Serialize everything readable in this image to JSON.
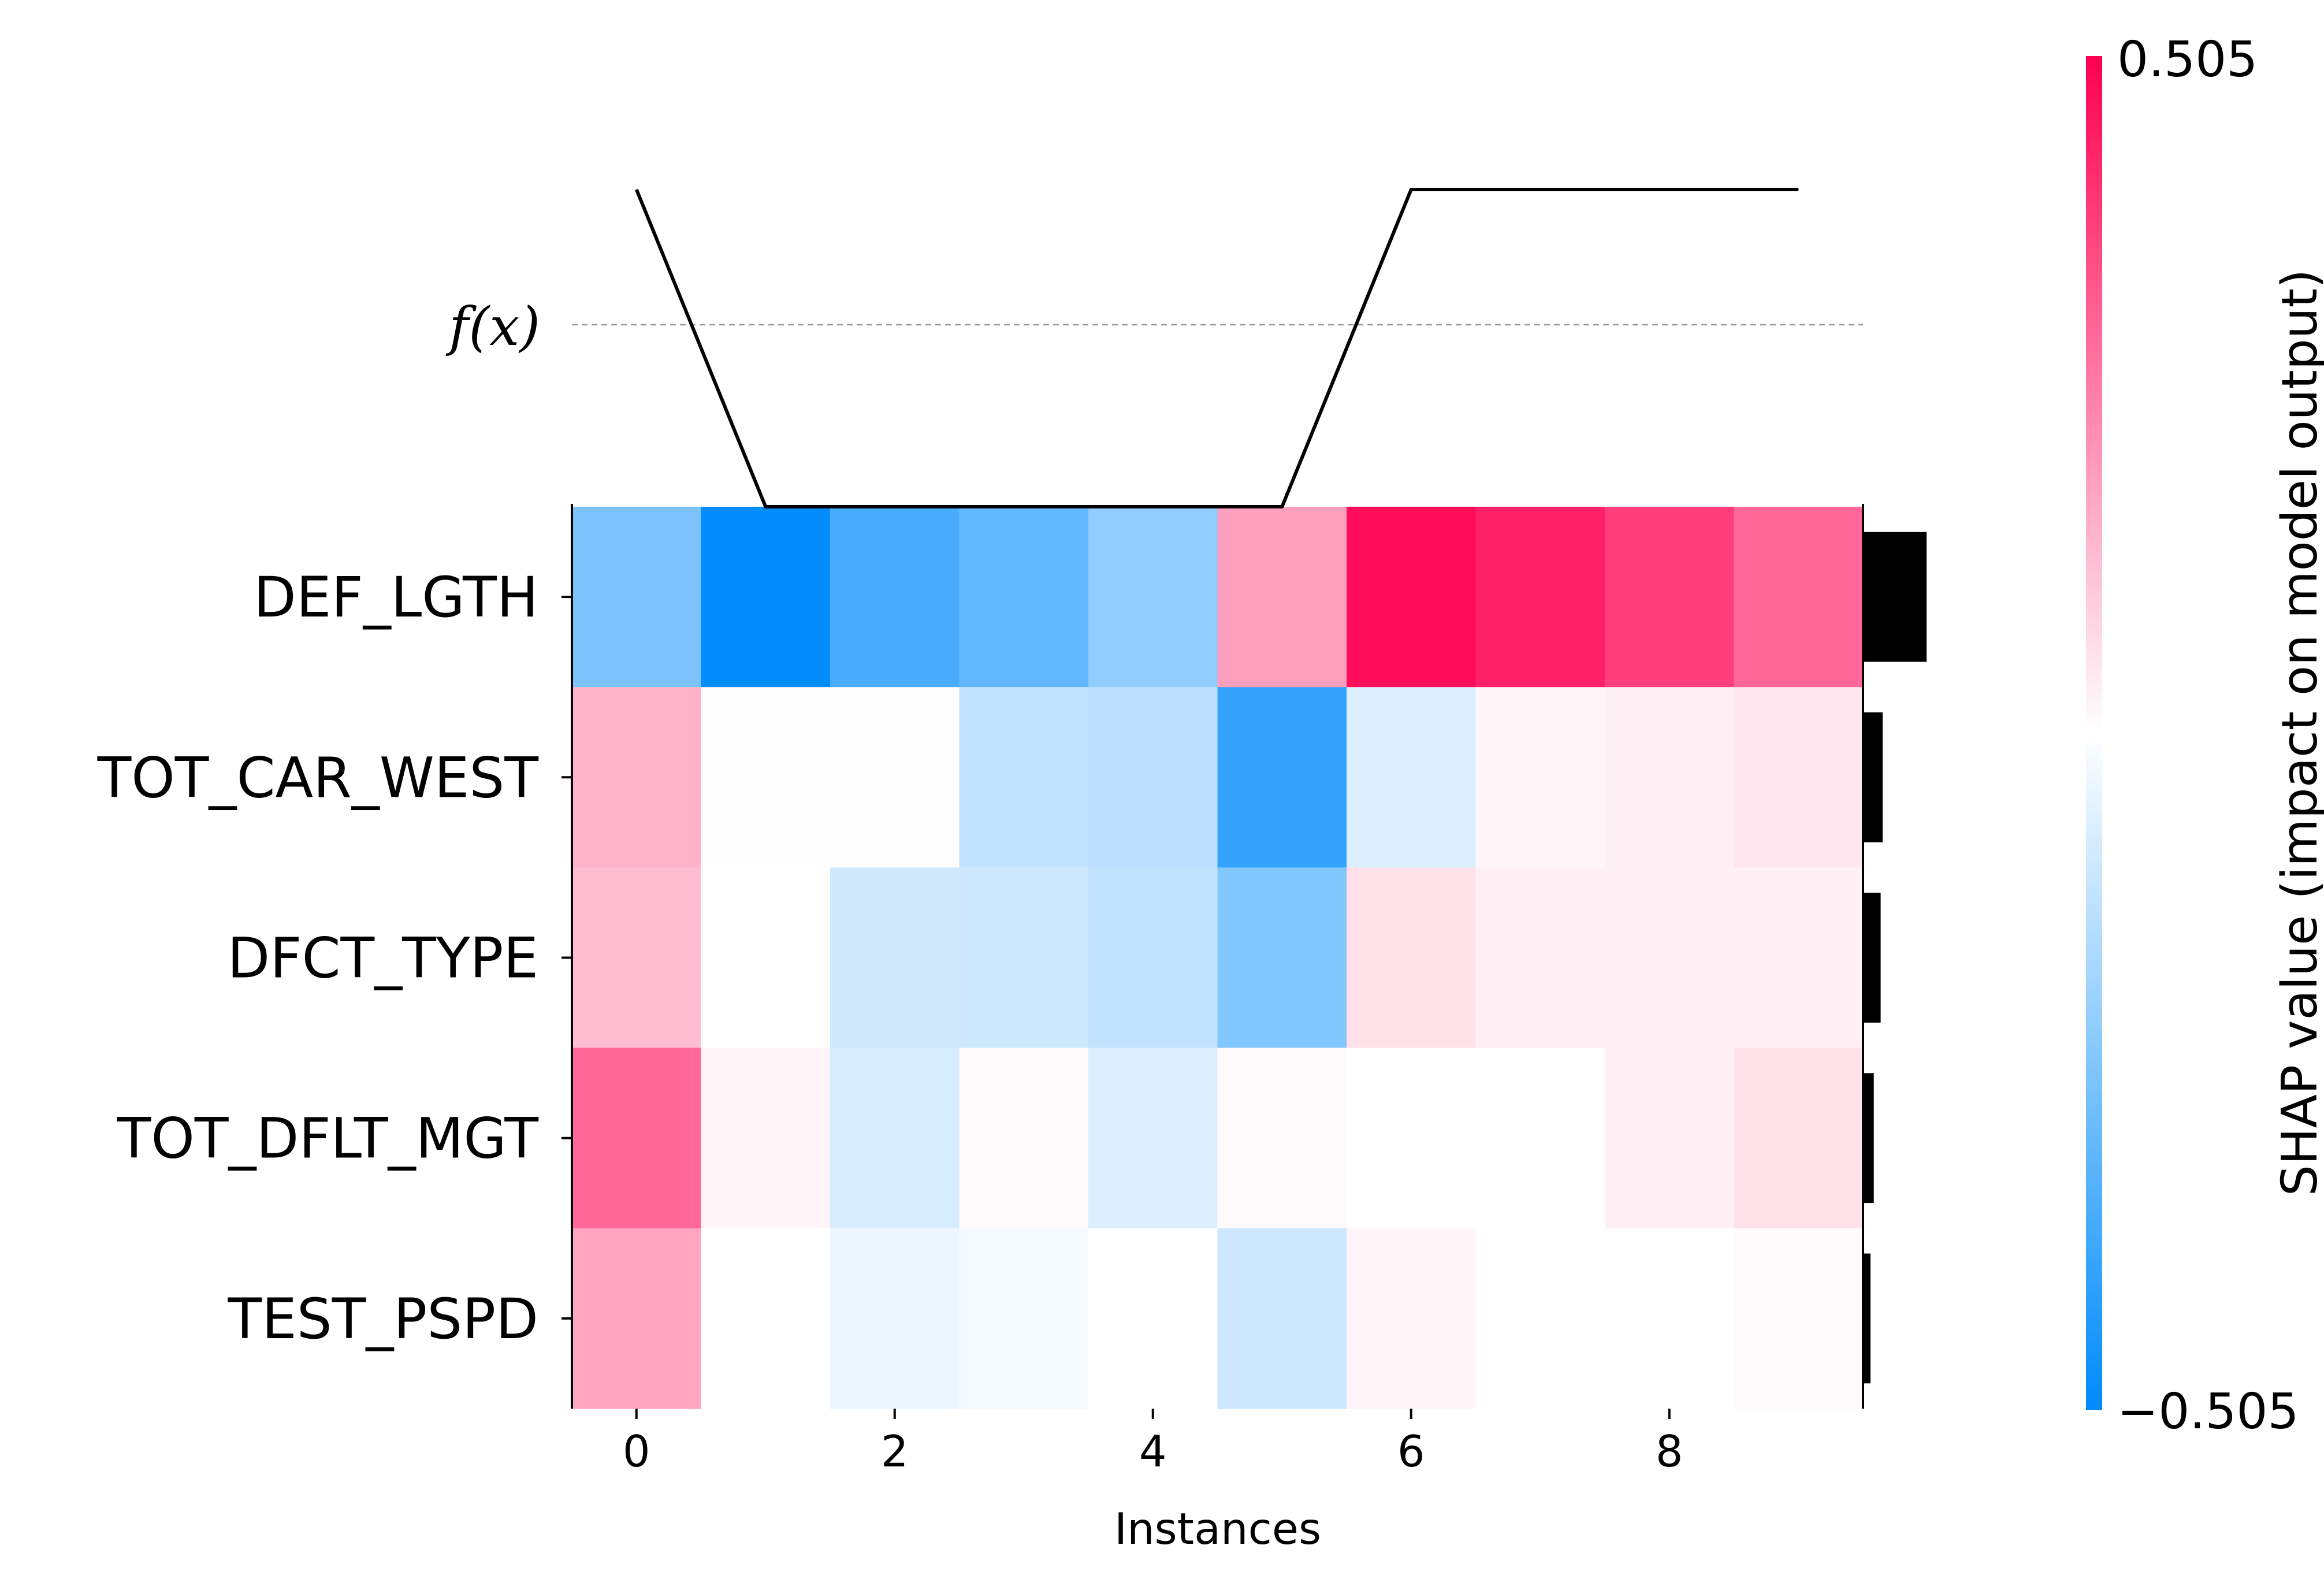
{
  "chart_data": {
    "type": "heatmap",
    "title": "",
    "xlabel": "Instances",
    "ylabel": "",
    "x": [
      0,
      1,
      2,
      3,
      4,
      5,
      6,
      7,
      8,
      9
    ],
    "x_ticks": [
      "0",
      "2",
      "4",
      "6",
      "8"
    ],
    "features": [
      "DEF_LGTH",
      "TOT_CAR_WEST",
      "DFCT_TYPE",
      "TOT_DFLT_MGT",
      "TEST_PSPD"
    ],
    "values": [
      [
        -0.26,
        -0.5,
        -0.36,
        -0.31,
        -0.22,
        0.19,
        0.48,
        0.44,
        0.38,
        0.3
      ],
      [
        0.15,
        0.004,
        0.004,
        -0.12,
        -0.13,
        -0.4,
        -0.07,
        0.02,
        0.03,
        0.05
      ],
      [
        0.13,
        0.0,
        -0.09,
        -0.1,
        -0.12,
        -0.25,
        0.06,
        0.03,
        0.03,
        0.03
      ],
      [
        0.3,
        0.02,
        -0.08,
        0.01,
        -0.07,
        0.01,
        0.0,
        0.0,
        0.03,
        0.06
      ],
      [
        0.18,
        0.0,
        -0.04,
        -0.02,
        0.0,
        -0.1,
        0.02,
        0.0,
        0.0,
        0.01
      ]
    ],
    "fx_label": "f(x)",
    "fx_values": [
      1.0,
      0.0,
      0.0,
      0.0,
      0.0,
      0.0,
      1.0,
      1.0,
      1.0,
      1.0
    ],
    "feature_importance": [
      0.324,
      0.1,
      0.09,
      0.055,
      0.038
    ],
    "colorbar": {
      "label": "SHAP value (impact on model output)",
      "min_label": "−0.505",
      "max_label": "0.505",
      "min": -0.505,
      "max": 0.505,
      "low_color": "#008bfb",
      "high_color": "#ff0051"
    }
  }
}
